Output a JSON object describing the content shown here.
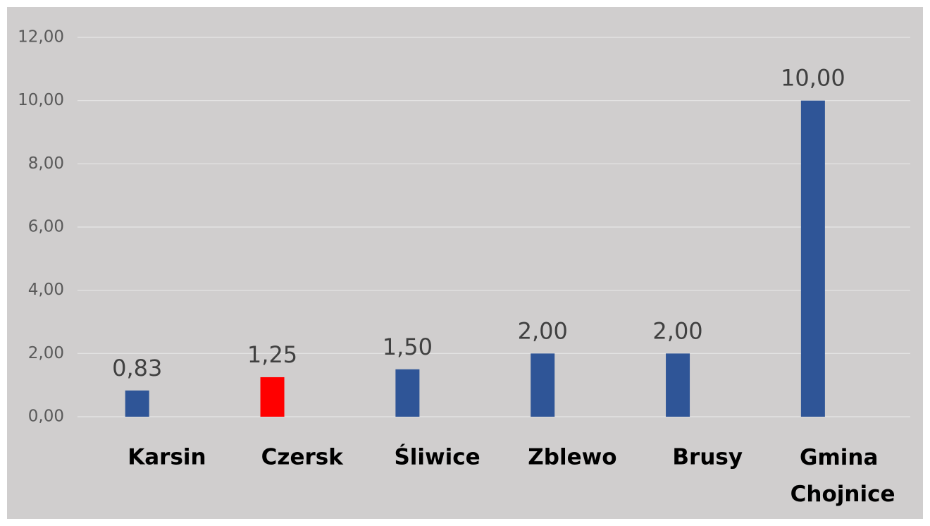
{
  "chart_data": {
    "type": "bar",
    "categories": [
      "Karsin",
      "Czersk",
      "Śliwice",
      "Zblewo",
      "Brusy",
      "Gmina Chojnice"
    ],
    "values": [
      0.83,
      1.25,
      1.5,
      2,
      2,
      10
    ],
    "value_labels": [
      "0,83",
      "1,25",
      "1,50",
      "2,00",
      "2,00",
      "10,00"
    ],
    "colors": [
      "#2f5597",
      "#ff0000",
      "#2f5597",
      "#2f5597",
      "#2f5597",
      "#2f5597"
    ],
    "ylim": [
      0,
      12
    ],
    "yticks": [
      {
        "value": 0,
        "label": "0,00"
      },
      {
        "value": 2,
        "label": "2,00"
      },
      {
        "value": 4,
        "label": "4,00"
      },
      {
        "value": 6,
        "label": "6,00"
      },
      {
        "value": 8,
        "label": "8,00"
      },
      {
        "value": 10,
        "label": "10,00"
      },
      {
        "value": 12,
        "label": "12,00"
      }
    ],
    "grid": true
  }
}
